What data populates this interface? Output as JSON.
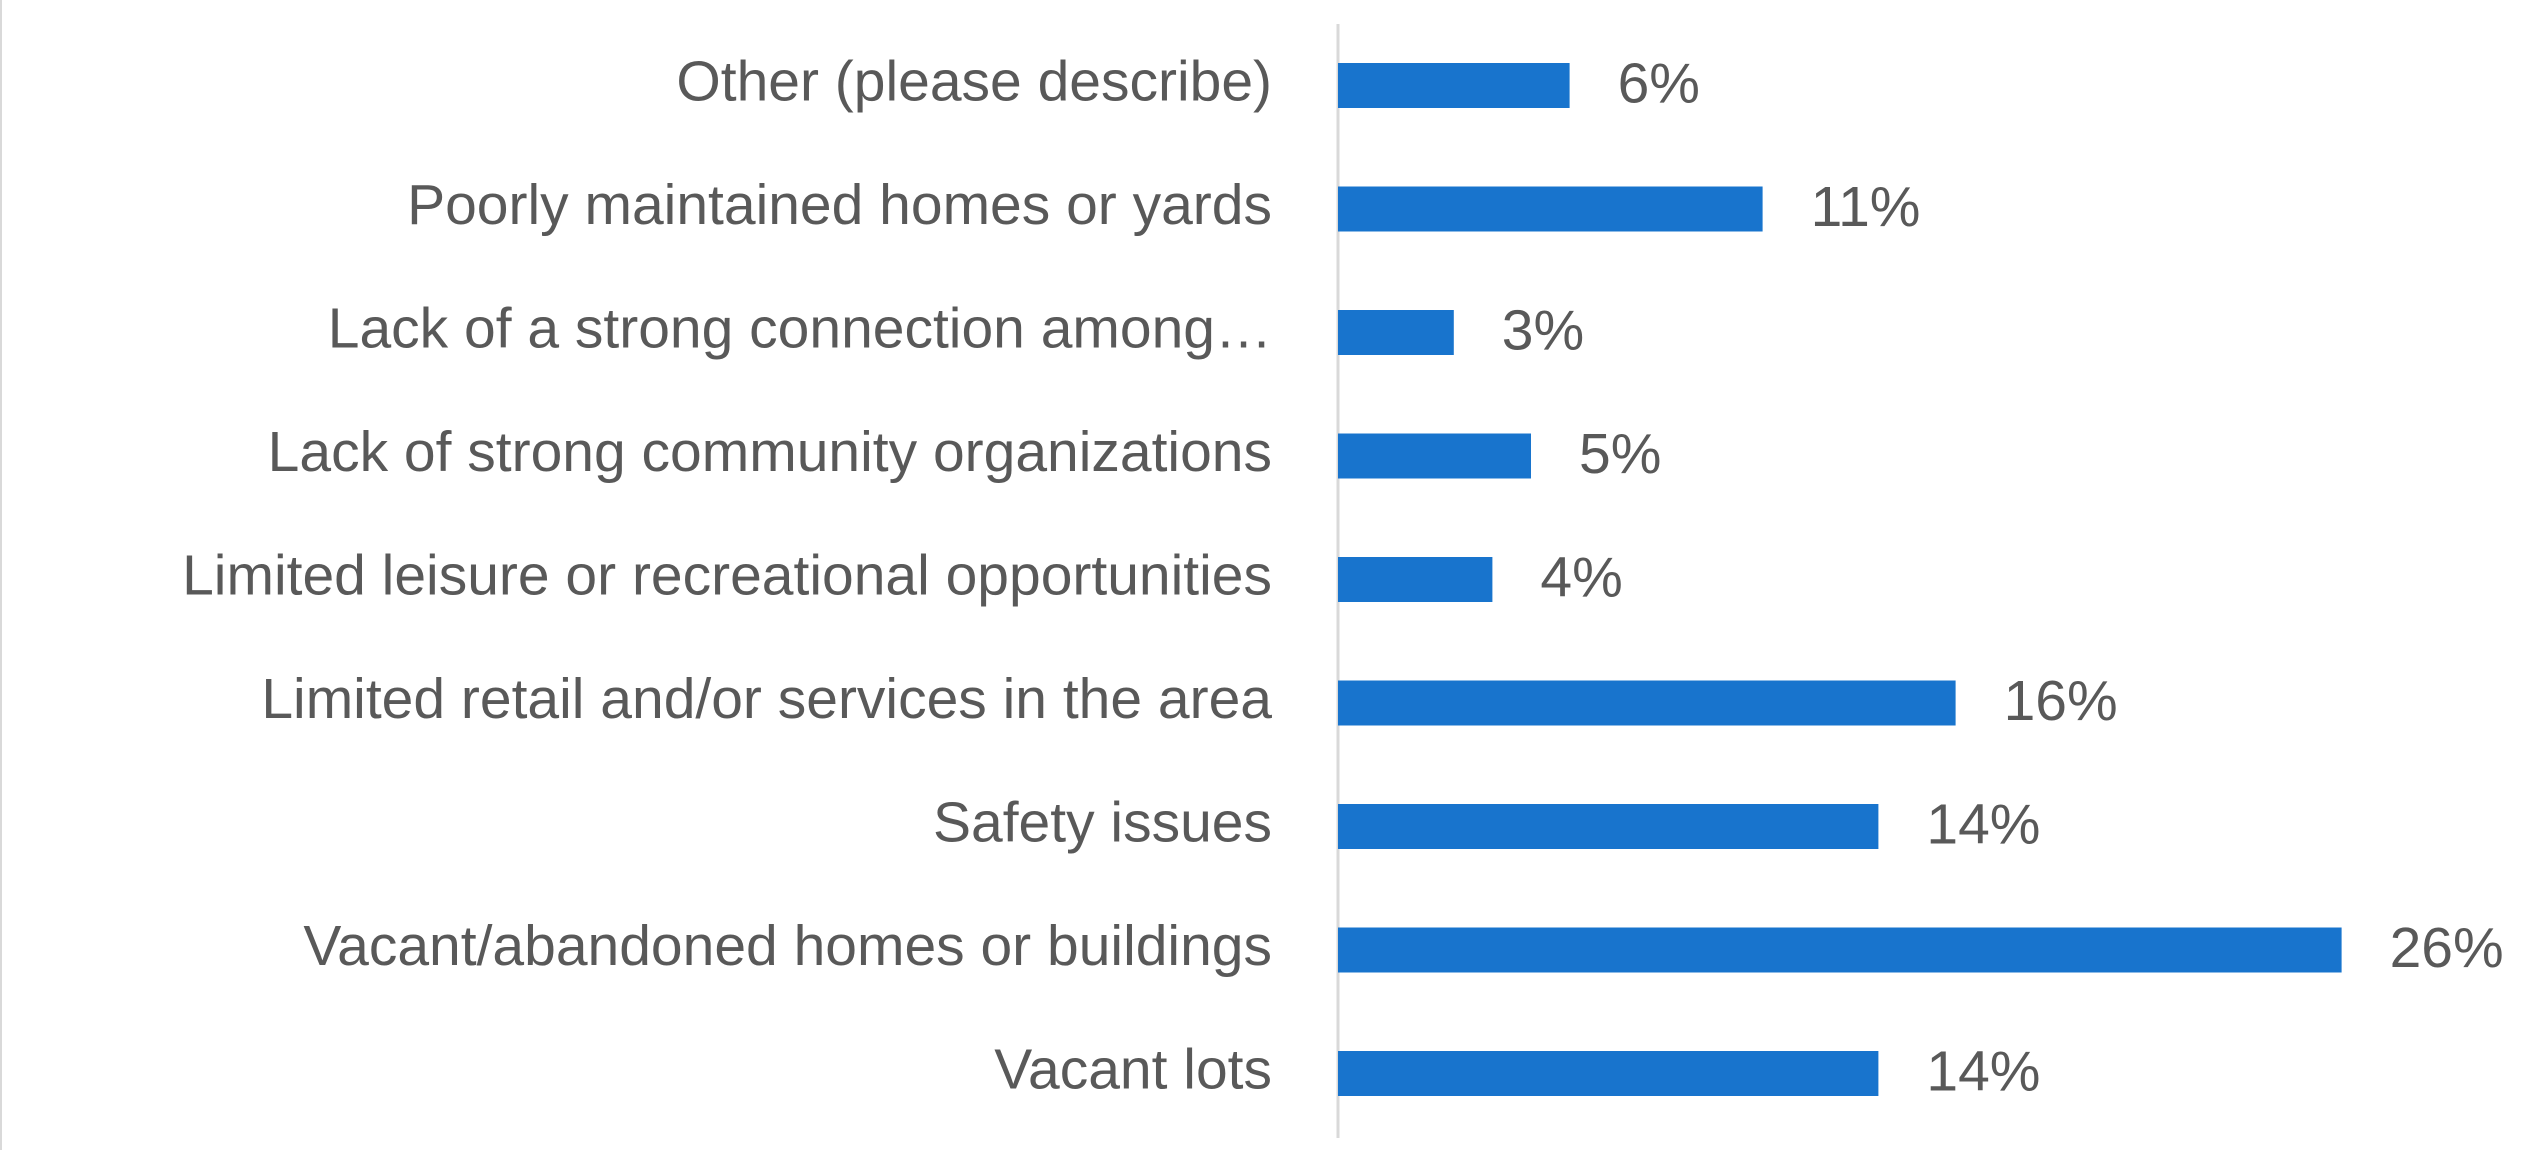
{
  "chart_data": {
    "type": "hbar",
    "categories": [
      "Other (please describe)",
      "Poorly maintained homes or yards",
      "Lack of a strong connection among…",
      "Lack of strong community organizations",
      "Limited leisure or recreational opportunities",
      "Limited retail and/or services in the area",
      "Safety issues",
      "Vacant/abandoned homes or buildings",
      "Vacant lots"
    ],
    "values": [
      6,
      11,
      3,
      5,
      4,
      16,
      14,
      26,
      14
    ],
    "value_labels": [
      "6%",
      "11%",
      "3%",
      "5%",
      "4%",
      "16%",
      "14%",
      "26%",
      "14%"
    ],
    "color": "#1874cd"
  }
}
